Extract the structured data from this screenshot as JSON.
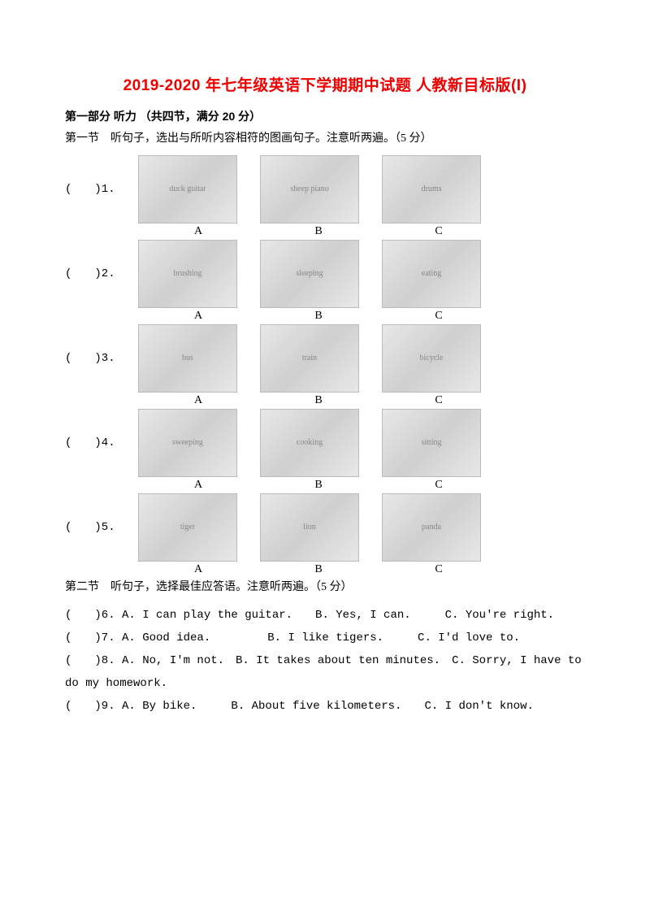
{
  "title": "2019-2020 年七年级英语下学期期中试题 人教新目标版(I)",
  "part1": {
    "header": "第一部分 听力 （共四节，满分 20 分）",
    "sec1_instruction": "第一节　听句子，选出与所听内容相符的图画句子。注意听两遍。（5 分）",
    "picture_questions": [
      {
        "num": "(　　)1.",
        "a": "A",
        "b": "B",
        "c": "C",
        "desc_a": "duck guitar",
        "desc_b": "sheep piano",
        "desc_c": "drums"
      },
      {
        "num": "(　　)2.",
        "a": "A",
        "b": "B",
        "c": "C",
        "desc_a": "brushing",
        "desc_b": "sleeping",
        "desc_c": "eating"
      },
      {
        "num": "(　　)3.",
        "a": "A",
        "b": "B",
        "c": "C",
        "desc_a": "bus",
        "desc_b": "train",
        "desc_c": "bicycle"
      },
      {
        "num": "(　　)4.",
        "a": "A",
        "b": "B",
        "c": "C",
        "desc_a": "sweeping",
        "desc_b": "cooking",
        "desc_c": "sitting"
      },
      {
        "num": "(　　)5.",
        "a": "A",
        "b": "B",
        "c": "C",
        "desc_a": "tiger",
        "desc_b": "lion",
        "desc_c": "panda"
      }
    ],
    "sec2_instruction": "第二节　听句子，选择最佳应答语。注意听两遍。（5 分）",
    "text_questions": [
      "(　　)6. A. I can play the guitar.　　B. Yes, I can.　　　C. You're right.",
      "(　　)7. A. Good idea.　　　　　B. I like tigers.　　　C. I'd love to.",
      "(　　)8. A. No, I'm not.　B. It takes about ten minutes.　C. Sorry, I have to do my homework.",
      "(　　)9. A. By bike.　　　B. About five kilometers.　　C. I don't know."
    ]
  },
  "colors": {
    "title": "#ee0000",
    "text": "#000000",
    "bg": "#ffffff"
  }
}
